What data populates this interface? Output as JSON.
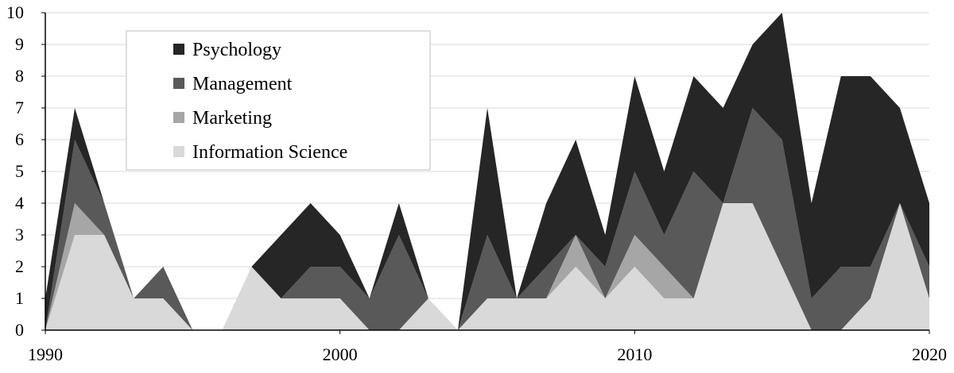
{
  "chart_data": {
    "type": "area",
    "stacked": true,
    "title": "",
    "xlabel": "",
    "ylabel": "",
    "xlim": [
      1990,
      2020
    ],
    "ylim": [
      0,
      10
    ],
    "grid": true,
    "legend_position": "top-left",
    "x_ticks": [
      "1990",
      "2000",
      "2010",
      "2020"
    ],
    "y_ticks": [
      "0",
      "1",
      "2",
      "3",
      "4",
      "5",
      "6",
      "7",
      "8",
      "9",
      "10"
    ],
    "x": [
      1990,
      1991,
      1992,
      1993,
      1994,
      1995,
      1996,
      1997,
      1998,
      1999,
      2000,
      2001,
      2002,
      2003,
      2004,
      2005,
      2006,
      2007,
      2008,
      2009,
      2010,
      2011,
      2012,
      2013,
      2014,
      2015,
      2016,
      2017,
      2018,
      2019,
      2020
    ],
    "series": [
      {
        "name": "Information Science",
        "color": "#d9d9d9",
        "values": [
          0,
          3,
          3,
          1,
          1,
          0,
          0,
          2,
          1,
          1,
          1,
          0,
          0,
          1,
          0,
          1,
          1,
          1,
          2,
          1,
          2,
          1,
          1,
          4,
          4,
          2,
          0,
          0,
          1,
          4,
          1
        ]
      },
      {
        "name": "Marketing",
        "color": "#a6a6a6",
        "values": [
          0,
          1,
          0,
          0,
          0,
          0,
          0,
          0,
          0,
          0,
          0,
          0,
          0,
          0,
          0,
          0,
          0,
          0,
          1,
          0,
          1,
          1,
          0,
          0,
          0,
          0,
          0,
          0,
          0,
          0,
          0
        ]
      },
      {
        "name": "Management",
        "color": "#595959",
        "values": [
          0,
          2,
          1,
          0,
          1,
          0,
          0,
          0,
          0,
          1,
          1,
          1,
          3,
          0,
          0,
          2,
          0,
          1,
          0,
          1,
          2,
          1,
          4,
          0,
          3,
          4,
          1,
          2,
          1,
          0,
          1
        ]
      },
      {
        "name": "Psychology",
        "color": "#262626",
        "values": [
          1,
          1,
          0,
          0,
          0,
          0,
          0,
          0,
          2,
          2,
          1,
          0,
          1,
          0,
          0,
          4,
          0,
          2,
          3,
          1,
          3,
          2,
          3,
          3,
          2,
          4,
          3,
          6,
          6,
          3,
          2
        ]
      }
    ],
    "legend_order": [
      "Psychology",
      "Management",
      "Marketing",
      "Information Science"
    ]
  }
}
